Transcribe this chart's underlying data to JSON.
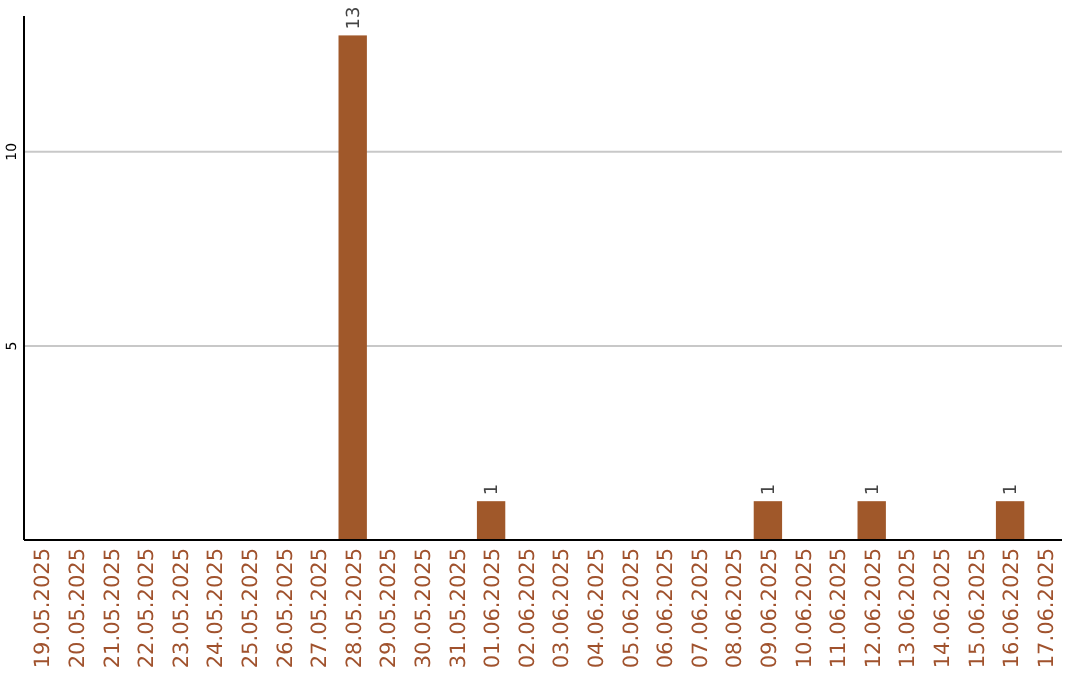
{
  "chart_data": {
    "type": "bar",
    "categories": [
      "19.05.2025",
      "20.05.2025",
      "21.05.2025",
      "22.05.2025",
      "23.05.2025",
      "24.05.2025",
      "25.05.2025",
      "26.05.2025",
      "27.05.2025",
      "28.05.2025",
      "29.05.2025",
      "30.05.2025",
      "31.05.2025",
      "01.06.2025",
      "02.06.2025",
      "03.06.2025",
      "04.06.2025",
      "05.06.2025",
      "06.06.2025",
      "07.06.2025",
      "08.06.2025",
      "09.06.2025",
      "10.06.2025",
      "11.06.2025",
      "12.06.2025",
      "13.06.2025",
      "14.06.2025",
      "15.06.2025",
      "16.06.2025",
      "17.06.2025"
    ],
    "values": [
      0,
      0,
      0,
      0,
      0,
      0,
      0,
      0,
      0,
      13,
      0,
      0,
      0,
      1,
      0,
      0,
      0,
      0,
      0,
      0,
      0,
      1,
      0,
      0,
      1,
      0,
      0,
      0,
      1,
      0
    ],
    "value_labels": [
      null,
      null,
      null,
      null,
      null,
      null,
      null,
      null,
      null,
      "13",
      null,
      null,
      null,
      "1",
      null,
      null,
      null,
      null,
      null,
      null,
      null,
      "1",
      null,
      null,
      "1",
      null,
      null,
      null,
      "1",
      null
    ],
    "color": "#a0582a",
    "ylim": [
      0,
      13.5
    ],
    "yticks": [
      5,
      10
    ],
    "grid": "y"
  }
}
